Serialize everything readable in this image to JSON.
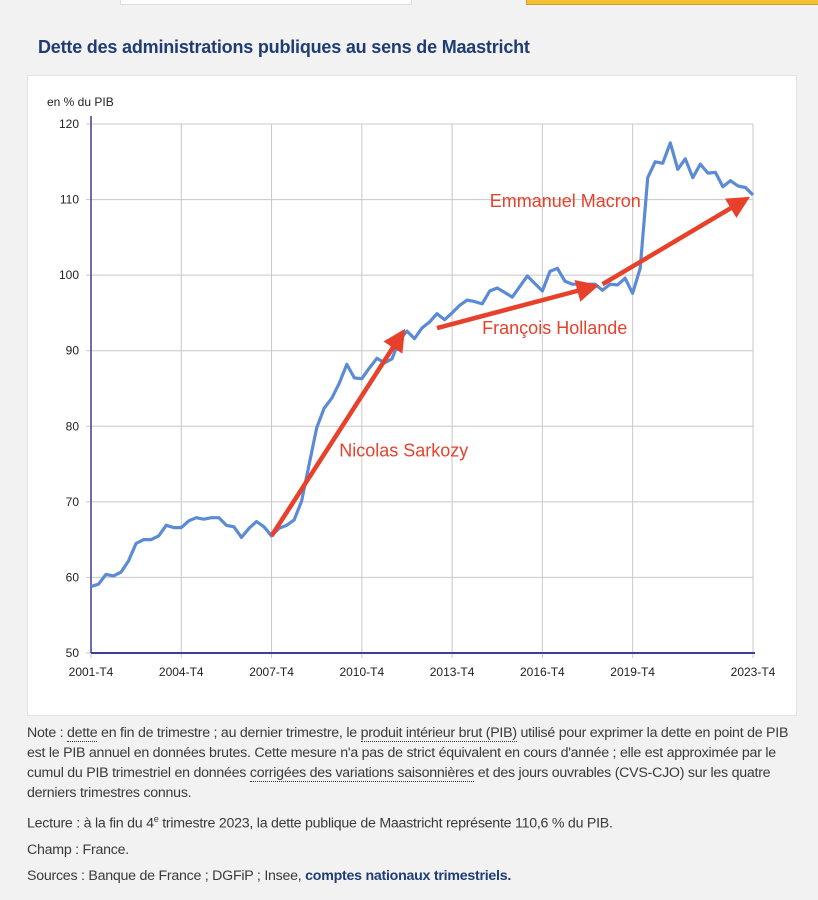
{
  "header": {
    "title": "Dette des administrations publiques au sens de Maastricht"
  },
  "colors": {
    "line": "#5b8bd6",
    "annotation": "#e8412b",
    "axis": "#3b3f9a",
    "grid": "#c8c8c8",
    "title": "#1f3c74",
    "tab_active": "#f5c033"
  },
  "chart_data": {
    "type": "line",
    "title": "",
    "ylabel": "en % du PIB",
    "xlabel": "",
    "ylim": [
      50,
      120
    ],
    "yticks": [
      50,
      60,
      70,
      80,
      90,
      100,
      110,
      120
    ],
    "frequency": "quarterly",
    "x_first": "2001-T4",
    "x_last": "2023-T4",
    "xticks": [
      "2001-T4",
      "2004-T4",
      "2007-T4",
      "2010-T4",
      "2013-T4",
      "2016-T4",
      "2019-T4",
      "2023-T4"
    ],
    "grid": true,
    "series": [
      {
        "values": [
          58.8,
          59.1,
          60.4,
          60.2,
          60.7,
          62.2,
          64.5,
          65.0,
          65.0,
          65.5,
          66.9,
          66.6,
          66.6,
          67.5,
          67.9,
          67.7,
          67.9,
          67.9,
          66.9,
          66.7,
          65.3,
          66.5,
          67.4,
          66.7,
          65.5,
          66.5,
          66.9,
          67.6,
          70.1,
          75.0,
          79.8,
          82.4,
          83.7,
          85.7,
          88.2,
          86.4,
          86.3,
          87.7,
          89.0,
          88.4,
          88.9,
          91.4,
          92.6,
          91.6,
          93.0,
          93.8,
          94.9,
          94.1,
          95.0,
          96.0,
          96.7,
          96.5,
          96.2,
          97.9,
          98.3,
          97.7,
          97.1,
          98.5,
          99.9,
          98.9,
          97.9,
          100.5,
          100.9,
          99.2,
          98.8,
          98.8,
          98.8,
          98.8,
          98.0,
          98.8,
          98.7,
          99.6,
          97.6,
          100.9,
          112.9,
          115.0,
          114.8,
          117.5,
          114.0,
          115.4,
          112.9,
          114.7,
          113.5,
          113.6,
          111.7,
          112.5,
          111.8,
          111.6,
          110.6
        ]
      }
    ],
    "annotations": [
      {
        "label": "Nicolas Sarkozy",
        "from": [
          "2007-T4",
          65.5
        ],
        "to": [
          "2012-T2",
          93.3
        ],
        "label_at": [
          "2010-T1",
          76
        ]
      },
      {
        "label": "François Hollande",
        "from": [
          "2013-T2",
          93.0
        ],
        "to": [
          "2018-T4",
          98.8
        ],
        "label_at": [
          "2014-T4",
          92.2
        ]
      },
      {
        "label": "Emmanuel Macron",
        "from": [
          "2018-T4",
          98.8
        ],
        "to": [
          "2023-T4",
          110.6
        ],
        "label_at": [
          "2015-T1",
          109
        ]
      }
    ]
  },
  "notes": {
    "note_parts": [
      {
        "text": "Note : ",
        "dotted": false
      },
      {
        "text": "dette",
        "dotted": true
      },
      {
        "text": " en fin de trimestre ; au dernier trimestre, le ",
        "dotted": false
      },
      {
        "text": "produit intérieur brut (PIB)",
        "dotted": true
      },
      {
        "text": " utilisé pour exprimer la dette en point de PIB est le PIB annuel en données brutes. Cette mesure n'a pas de strict équivalent en cours d'année ; elle est approximée par le cumul du PIB trimestriel en données ",
        "dotted": false
      },
      {
        "text": "corrigées des variations saisonnières",
        "dotted": true
      },
      {
        "text": " et des jours ouvrables (CVS-CJO) sur les quatre derniers trimestres connus.",
        "dotted": false
      }
    ],
    "lecture_before": "Lecture : à la fin du 4",
    "lecture_sup": "e",
    "lecture_after": " trimestre 2023, la dette publique de Maastricht représente 110,6 % du PIB.",
    "champ": "Champ : France.",
    "sources_prefix": "Sources : Banque de France ; DGFiP ; Insee, ",
    "sources_link": "comptes nationaux trimestriels."
  }
}
